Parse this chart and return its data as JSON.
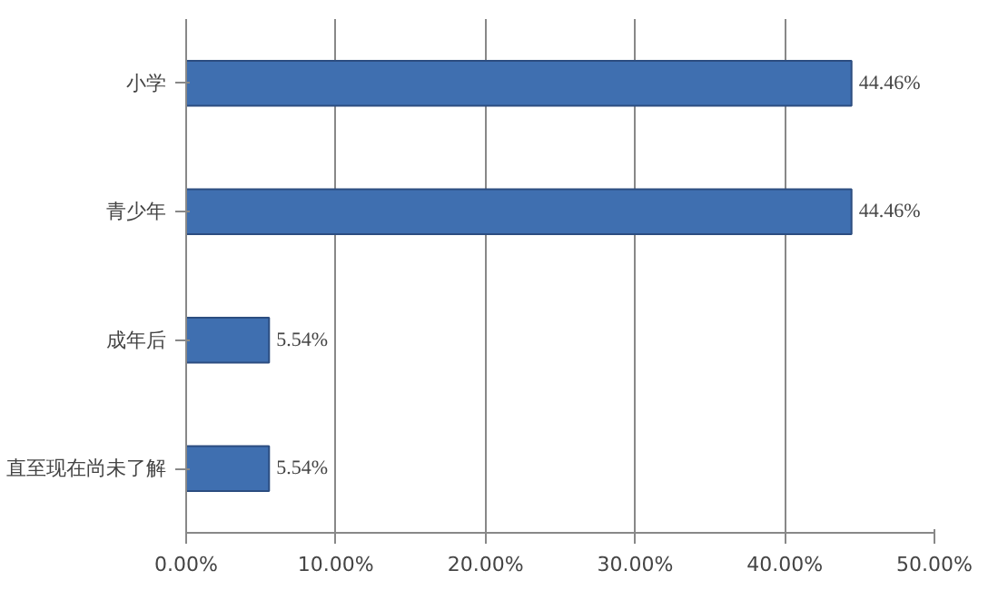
{
  "chart_data": {
    "type": "bar",
    "orientation": "horizontal",
    "categories": [
      "小学",
      "青少年",
      "成年后",
      "直至现在尚未了解"
    ],
    "values": [
      44.46,
      44.46,
      5.54,
      5.54
    ],
    "value_labels": [
      "44.46%",
      "44.46%",
      "5.54%",
      "5.54%"
    ],
    "color": "#3f6fb0",
    "xlim": [
      0,
      50
    ],
    "xticks": [
      {
        "value": 0,
        "label": "0.00%"
      },
      {
        "value": 10,
        "label": "10.00%"
      },
      {
        "value": 20,
        "label": "20.00%"
      },
      {
        "value": 30,
        "label": "30.00%"
      },
      {
        "value": 40,
        "label": "40.00%"
      },
      {
        "value": 50,
        "label": "50.00%"
      }
    ],
    "grid": "x"
  }
}
